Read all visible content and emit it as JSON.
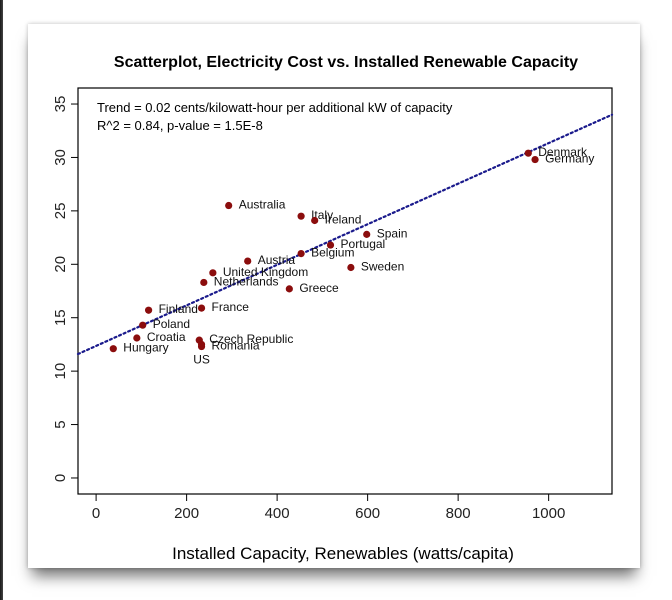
{
  "chart_data": {
    "type": "scatter",
    "title": "Scatterplot, Electricity Cost vs. Installed Renewable Capacity",
    "xlabel": "Installed Capacity, Renewables (watts/capita)",
    "ylabel": "",
    "xlim": [
      -40,
      1140
    ],
    "ylim": [
      -1.5,
      36.5
    ],
    "x_ticks": [
      0,
      200,
      400,
      600,
      800,
      1000
    ],
    "y_ticks": [
      0,
      5,
      10,
      15,
      20,
      25,
      30,
      35
    ],
    "annotations": [
      "Trend = 0.02 cents/kilowatt-hour per additional kW of capacity",
      "R^2 = 0.84, p-value = 1.5E-8"
    ],
    "trend_line": {
      "x": [
        -40,
        1140
      ],
      "y": [
        11.6,
        34.0
      ],
      "style": "dotted",
      "color": "#1a1a8c"
    },
    "point_color": "#8b0d0d",
    "points": [
      {
        "label": "Denmark",
        "x": 955,
        "y": 30.4
      },
      {
        "label": "Germany",
        "x": 970,
        "y": 29.8
      },
      {
        "label": "Australia",
        "x": 293,
        "y": 25.5
      },
      {
        "label": "Italy",
        "x": 453,
        "y": 24.5
      },
      {
        "label": "Ireland",
        "x": 483,
        "y": 24.1
      },
      {
        "label": "Spain",
        "x": 598,
        "y": 22.8
      },
      {
        "label": "Portugal",
        "x": 518,
        "y": 21.8
      },
      {
        "label": "Belgium",
        "x": 453,
        "y": 21.0
      },
      {
        "label": "Austria",
        "x": 335,
        "y": 20.3
      },
      {
        "label": "Sweden",
        "x": 563,
        "y": 19.7
      },
      {
        "label": "United Kingdom",
        "x": 258,
        "y": 19.2
      },
      {
        "label": "Netherlands",
        "x": 238,
        "y": 18.3
      },
      {
        "label": "Greece",
        "x": 427,
        "y": 17.7
      },
      {
        "label": "France",
        "x": 233,
        "y": 15.9
      },
      {
        "label": "Finland",
        "x": 116,
        "y": 15.7
      },
      {
        "label": "Poland",
        "x": 103,
        "y": 14.3
      },
      {
        "label": "Croatia",
        "x": 90,
        "y": 13.1
      },
      {
        "label": "Czech Republic",
        "x": 228,
        "y": 12.9
      },
      {
        "label": "Romania",
        "x": 233,
        "y": 12.3
      },
      {
        "label": "Hungary",
        "x": 38,
        "y": 12.1
      },
      {
        "label": "US",
        "x": 233,
        "y": 12.5
      }
    ]
  }
}
